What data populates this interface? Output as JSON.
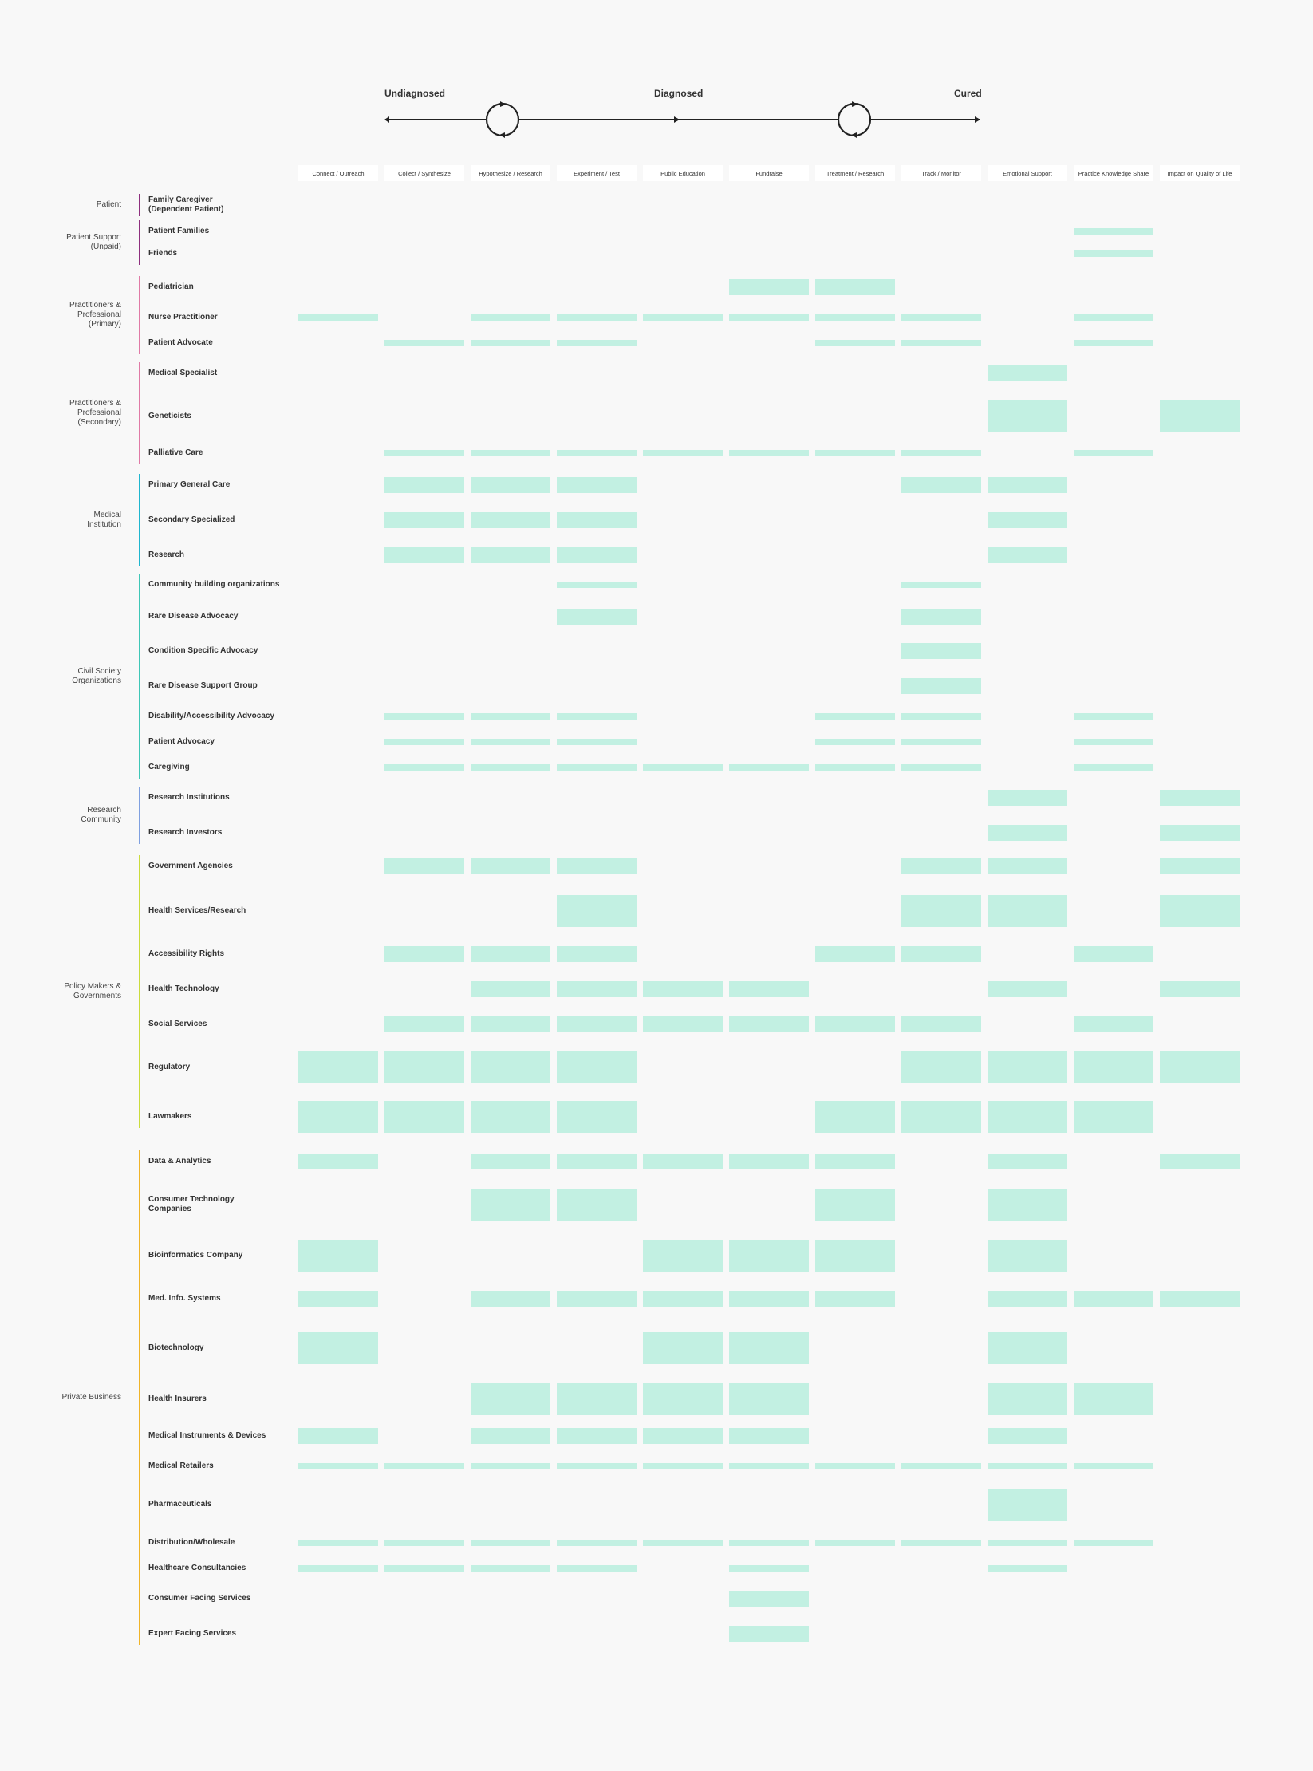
{
  "timeline": {
    "stages": [
      "Undiagnosed",
      "Diagnosed",
      "Cured"
    ]
  },
  "columns": [
    "Connect / Outreach",
    "Collect / Synthesize",
    "Hypothesize / Research",
    "Experiment / Test",
    "Public Education",
    "Fundraise",
    "Treatment / Research",
    "Track / Monitor",
    "Emotional Support",
    "Practice Knowledge Share",
    "Impact on Quality of Life"
  ],
  "groups": [
    {
      "label": "Patient",
      "color": "#8e2f7e",
      "rows": [
        {
          "label": "Family Caregiver\n(Dependent Patient)",
          "cells": []
        }
      ]
    },
    {
      "label": "Patient Support\n(Unpaid)",
      "color": "#8e2f7e",
      "rows": [
        {
          "label": "Patient Families",
          "cells": [
            [
              9,
              "s"
            ]
          ]
        },
        {
          "label": "Friends",
          "cells": [
            [
              9,
              "s"
            ]
          ]
        }
      ]
    },
    {
      "label": "Practitioners &\nProfessional\n(Primary)",
      "color": "#e07aa6",
      "rows": [
        {
          "label": "Pediatrician",
          "cells": [
            [
              5,
              "m"
            ],
            [
              6,
              "m"
            ]
          ]
        },
        {
          "label": "Nurse Practitioner",
          "cells": [
            [
              0,
              "s"
            ],
            [
              2,
              "s"
            ],
            [
              3,
              "s"
            ],
            [
              4,
              "s"
            ],
            [
              5,
              "s"
            ],
            [
              6,
              "s"
            ],
            [
              7,
              "s"
            ],
            [
              9,
              "s"
            ]
          ]
        },
        {
          "label": "Patient Advocate",
          "cells": [
            [
              1,
              "s"
            ],
            [
              2,
              "s"
            ],
            [
              3,
              "s"
            ],
            [
              6,
              "s"
            ],
            [
              7,
              "s"
            ],
            [
              9,
              "s"
            ]
          ]
        }
      ]
    },
    {
      "label": "Practitioners &\nProfessional\n(Secondary)",
      "color": "#e07aa6",
      "rows": [
        {
          "label": "Medical Specialist",
          "cells": [
            [
              8,
              "m"
            ]
          ]
        },
        {
          "label": "Geneticists",
          "cells": [
            [
              8,
              "l"
            ],
            [
              10,
              "l"
            ]
          ]
        },
        {
          "label": "Palliative Care",
          "cells": [
            [
              1,
              "s"
            ],
            [
              2,
              "s"
            ],
            [
              3,
              "s"
            ],
            [
              4,
              "s"
            ],
            [
              5,
              "s"
            ],
            [
              6,
              "s"
            ],
            [
              7,
              "s"
            ],
            [
              9,
              "s"
            ]
          ]
        }
      ]
    },
    {
      "label": "Medical\nInstitution",
      "color": "#1fb6cf",
      "rows": [
        {
          "label": "Primary General Care",
          "cells": [
            [
              1,
              "m"
            ],
            [
              2,
              "m"
            ],
            [
              3,
              "m"
            ],
            [
              7,
              "m"
            ],
            [
              8,
              "m"
            ]
          ]
        },
        {
          "label": "Secondary Specialized",
          "cells": [
            [
              1,
              "m"
            ],
            [
              2,
              "m"
            ],
            [
              3,
              "m"
            ],
            [
              8,
              "m"
            ]
          ]
        },
        {
          "label": "Research",
          "cells": [
            [
              1,
              "m"
            ],
            [
              2,
              "m"
            ],
            [
              3,
              "m"
            ],
            [
              8,
              "m"
            ]
          ]
        }
      ]
    },
    {
      "label": "Civil Society\nOrganizations",
      "color": "#3fc7b7",
      "rows": [
        {
          "label": "Community building organizations",
          "cells": [
            [
              3,
              "s"
            ],
            [
              7,
              "s"
            ]
          ]
        },
        {
          "label": "Rare Disease Advocacy",
          "cells": [
            [
              3,
              "m"
            ],
            [
              7,
              "m"
            ]
          ]
        },
        {
          "label": "Condition Specific Advocacy",
          "cells": [
            [
              7,
              "m"
            ]
          ]
        },
        {
          "label": "Rare Disease Support Group",
          "cells": [
            [
              7,
              "m"
            ]
          ]
        },
        {
          "label": "Disability/Accessibility Advocacy",
          "cells": [
            [
              1,
              "s"
            ],
            [
              2,
              "s"
            ],
            [
              3,
              "s"
            ],
            [
              6,
              "s"
            ],
            [
              7,
              "s"
            ],
            [
              9,
              "s"
            ]
          ]
        },
        {
          "label": "Patient Advocacy",
          "cells": [
            [
              1,
              "s"
            ],
            [
              2,
              "s"
            ],
            [
              3,
              "s"
            ],
            [
              6,
              "s"
            ],
            [
              7,
              "s"
            ],
            [
              9,
              "s"
            ]
          ]
        },
        {
          "label": "Caregiving",
          "cells": [
            [
              1,
              "s"
            ],
            [
              2,
              "s"
            ],
            [
              3,
              "s"
            ],
            [
              4,
              "s"
            ],
            [
              5,
              "s"
            ],
            [
              6,
              "s"
            ],
            [
              7,
              "s"
            ],
            [
              9,
              "s"
            ]
          ]
        }
      ]
    },
    {
      "label": "Research\nCommunity",
      "color": "#7fa0e0",
      "rows": [
        {
          "label": "Research Institutions",
          "cells": [
            [
              8,
              "m"
            ],
            [
              10,
              "m"
            ]
          ]
        },
        {
          "label": "Research Investors",
          "cells": [
            [
              8,
              "m"
            ],
            [
              10,
              "m"
            ]
          ]
        }
      ]
    },
    {
      "label": "Policy Makers &\nGovernments",
      "color": "#cbdc3c",
      "rows": [
        {
          "label": "Government Agencies",
          "cells": [
            [
              1,
              "m"
            ],
            [
              2,
              "m"
            ],
            [
              3,
              "m"
            ],
            [
              7,
              "m"
            ],
            [
              8,
              "m"
            ],
            [
              10,
              "m"
            ]
          ]
        },
        {
          "label": "Health Services/Research",
          "cells": [
            [
              3,
              "l"
            ],
            [
              7,
              "l"
            ],
            [
              8,
              "l"
            ],
            [
              10,
              "l"
            ]
          ]
        },
        {
          "label": "Accessibility Rights",
          "cells": [
            [
              1,
              "m"
            ],
            [
              2,
              "m"
            ],
            [
              3,
              "m"
            ],
            [
              6,
              "m"
            ],
            [
              7,
              "m"
            ],
            [
              9,
              "m"
            ]
          ]
        },
        {
          "label": "Health Technology",
          "cells": [
            [
              2,
              "m"
            ],
            [
              3,
              "m"
            ],
            [
              4,
              "m"
            ],
            [
              5,
              "m"
            ],
            [
              8,
              "m"
            ],
            [
              10,
              "m"
            ]
          ]
        },
        {
          "label": "Social Services",
          "cells": [
            [
              1,
              "m"
            ],
            [
              2,
              "m"
            ],
            [
              3,
              "m"
            ],
            [
              4,
              "m"
            ],
            [
              5,
              "m"
            ],
            [
              6,
              "m"
            ],
            [
              7,
              "m"
            ],
            [
              9,
              "m"
            ]
          ]
        },
        {
          "label": "Regulatory",
          "cells": [
            [
              0,
              "l"
            ],
            [
              1,
              "l"
            ],
            [
              2,
              "l"
            ],
            [
              3,
              "l"
            ],
            [
              7,
              "l"
            ],
            [
              8,
              "l"
            ],
            [
              9,
              "l"
            ],
            [
              10,
              "l"
            ]
          ]
        },
        {
          "label": "Lawmakers",
          "cells": [
            [
              0,
              "l"
            ],
            [
              1,
              "l"
            ],
            [
              2,
              "l"
            ],
            [
              3,
              "l"
            ],
            [
              6,
              "l"
            ],
            [
              7,
              "l"
            ],
            [
              8,
              "l"
            ],
            [
              9,
              "l"
            ]
          ]
        }
      ]
    },
    {
      "label": "Private Business",
      "color": "#f0b429",
      "rows": [
        {
          "label": "Data & Analytics",
          "cells": [
            [
              0,
              "m"
            ],
            [
              2,
              "m"
            ],
            [
              3,
              "m"
            ],
            [
              4,
              "m"
            ],
            [
              5,
              "m"
            ],
            [
              6,
              "m"
            ],
            [
              8,
              "m"
            ],
            [
              10,
              "m"
            ]
          ]
        },
        {
          "label": "Consumer Technology\nCompanies",
          "cells": [
            [
              2,
              "l"
            ],
            [
              3,
              "l"
            ],
            [
              6,
              "l"
            ],
            [
              8,
              "l"
            ]
          ]
        },
        {
          "label": "Bioinformatics Company",
          "cells": [
            [
              0,
              "l"
            ],
            [
              4,
              "l"
            ],
            [
              5,
              "l"
            ],
            [
              6,
              "l"
            ],
            [
              8,
              "l"
            ]
          ]
        },
        {
          "label": "Med. Info. Systems",
          "cells": [
            [
              0,
              "m"
            ],
            [
              2,
              "m"
            ],
            [
              3,
              "m"
            ],
            [
              4,
              "m"
            ],
            [
              5,
              "m"
            ],
            [
              6,
              "m"
            ],
            [
              8,
              "m"
            ],
            [
              9,
              "m"
            ],
            [
              10,
              "m"
            ]
          ]
        },
        {
          "label": "Biotechnology",
          "cells": [
            [
              0,
              "l"
            ],
            [
              4,
              "l"
            ],
            [
              5,
              "l"
            ],
            [
              8,
              "l"
            ]
          ]
        },
        {
          "label": "Health Insurers",
          "cells": [
            [
              2,
              "l"
            ],
            [
              3,
              "l"
            ],
            [
              4,
              "l"
            ],
            [
              5,
              "l"
            ],
            [
              8,
              "l"
            ],
            [
              9,
              "l"
            ]
          ]
        },
        {
          "label": "Medical Instruments & Devices",
          "cells": [
            [
              0,
              "m"
            ],
            [
              2,
              "m"
            ],
            [
              3,
              "m"
            ],
            [
              4,
              "m"
            ],
            [
              5,
              "m"
            ],
            [
              8,
              "m"
            ]
          ]
        },
        {
          "label": "Medical Retailers",
          "cells": [
            [
              0,
              "s"
            ],
            [
              1,
              "s"
            ],
            [
              2,
              "s"
            ],
            [
              3,
              "s"
            ],
            [
              4,
              "s"
            ],
            [
              5,
              "s"
            ],
            [
              6,
              "s"
            ],
            [
              7,
              "s"
            ],
            [
              8,
              "s"
            ],
            [
              9,
              "s"
            ]
          ]
        },
        {
          "label": "Pharmaceuticals",
          "cells": [
            [
              8,
              "l"
            ]
          ]
        },
        {
          "label": "Distribution/Wholesale",
          "cells": [
            [
              0,
              "s"
            ],
            [
              1,
              "s"
            ],
            [
              2,
              "s"
            ],
            [
              3,
              "s"
            ],
            [
              4,
              "s"
            ],
            [
              5,
              "s"
            ],
            [
              6,
              "s"
            ],
            [
              7,
              "s"
            ],
            [
              8,
              "s"
            ],
            [
              9,
              "s"
            ]
          ]
        },
        {
          "label": "Healthcare Consultancies",
          "cells": [
            [
              0,
              "s"
            ],
            [
              1,
              "s"
            ],
            [
              2,
              "s"
            ],
            [
              3,
              "s"
            ],
            [
              5,
              "s"
            ],
            [
              8,
              "s"
            ]
          ]
        },
        {
          "label": "Consumer Facing Services",
          "cells": [
            [
              5,
              "m"
            ]
          ]
        },
        {
          "label": "Expert Facing Services",
          "cells": [
            [
              5,
              "m"
            ]
          ]
        }
      ]
    }
  ]
}
